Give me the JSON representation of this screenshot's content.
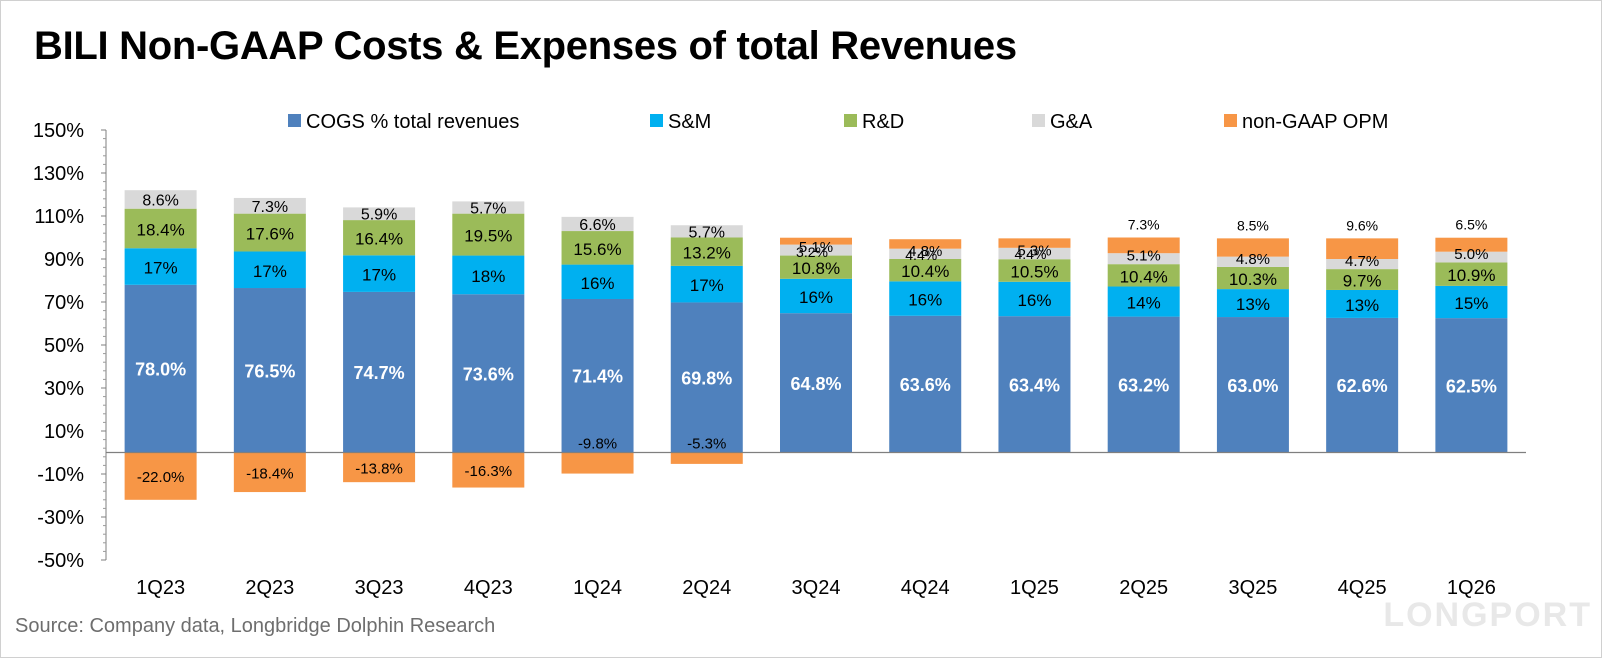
{
  "title": "BILI Non-GAAP Costs & Expenses of total Revenues",
  "source": "Source: Company data, Longbridge Dolphin Research",
  "watermark": "LONGPORT",
  "chart_data": {
    "type": "bar",
    "stacked": true,
    "title": "BILI Non-GAAP Costs & Expenses of total Revenues",
    "xlabel": "",
    "ylabel": "",
    "ylim": [
      -50,
      150
    ],
    "yticks": [
      -50,
      -30,
      -10,
      10,
      30,
      50,
      70,
      90,
      110,
      130,
      150
    ],
    "ytick_labels": [
      "-50%",
      "-30%",
      "-10%",
      "10%",
      "30%",
      "50%",
      "70%",
      "90%",
      "110%",
      "130%",
      "150%"
    ],
    "grid": false,
    "legend_position": "top",
    "categories": [
      "1Q23",
      "2Q23",
      "3Q23",
      "4Q23",
      "1Q24",
      "2Q24",
      "3Q24",
      "4Q24",
      "1Q25",
      "2Q25",
      "3Q25",
      "4Q25",
      "1Q26"
    ],
    "series": [
      {
        "name": "COGS % total revenues",
        "color": "#4f81bd",
        "values": [
          78.0,
          76.5,
          74.7,
          73.6,
          71.4,
          69.8,
          64.8,
          63.6,
          63.4,
          63.2,
          63.0,
          62.6,
          62.5
        ],
        "labels": [
          "78.0%",
          "76.5%",
          "74.7%",
          "73.6%",
          "71.4%",
          "69.8%",
          "64.8%",
          "63.6%",
          "63.4%",
          "63.2%",
          "63.0%",
          "62.6%",
          "62.5%"
        ]
      },
      {
        "name": "S&M",
        "color": "#00b0f0",
        "values": [
          17,
          17,
          17,
          18,
          16,
          17,
          16,
          16,
          16,
          14,
          13,
          13,
          15
        ],
        "labels": [
          "17%",
          "17%",
          "17%",
          "18%",
          "16%",
          "17%",
          "16%",
          "16%",
          "16%",
          "14%",
          "13%",
          "13%",
          "15%"
        ]
      },
      {
        "name": "R&D",
        "color": "#9bbb59",
        "values": [
          18.4,
          17.6,
          16.4,
          19.5,
          15.6,
          13.2,
          10.8,
          10.4,
          10.5,
          10.4,
          10.3,
          9.7,
          10.9
        ],
        "labels": [
          "18.4%",
          "17.6%",
          "16.4%",
          "19.5%",
          "15.6%",
          "13.2%",
          "10.8%",
          "10.4%",
          "10.5%",
          "10.4%",
          "10.3%",
          "9.7%",
          "10.9%"
        ]
      },
      {
        "name": "G&A",
        "color": "#d9d9d9",
        "values": [
          8.6,
          7.3,
          5.9,
          5.7,
          6.6,
          5.7,
          5.1,
          4.8,
          5.3,
          5.1,
          4.8,
          4.7,
          5.0
        ],
        "labels": [
          "8.6%",
          "7.3%",
          "5.9%",
          "5.7%",
          "6.6%",
          "5.7%",
          "5.1%",
          "4.8%",
          "5.3%",
          "5.1%",
          "4.8%",
          "4.7%",
          "5.0%"
        ]
      },
      {
        "name": "non-GAAP OPM",
        "color": "#f79646",
        "values": [
          -22.0,
          -18.4,
          -13.8,
          -16.3,
          -9.8,
          -5.3,
          3.2,
          4.4,
          4.4,
          7.3,
          8.5,
          9.6,
          6.5
        ],
        "labels": [
          "-22.0%",
          "-18.4%",
          "-13.8%",
          "-16.3%",
          "-9.8%",
          "-5.3%",
          "3.2%",
          "4.4%",
          "4.4%",
          "7.3%",
          "8.5%",
          "9.6%",
          "6.5%"
        ]
      }
    ]
  }
}
